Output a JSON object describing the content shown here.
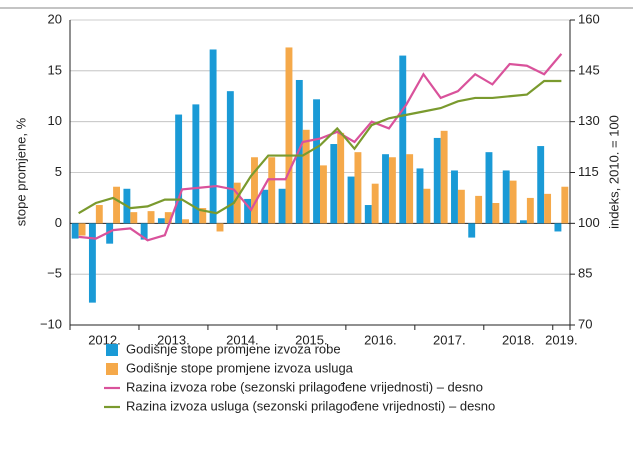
{
  "chart_data": {
    "type": "bar-line",
    "y_label": "stope promjene, %",
    "y2_label": "indeks, 2010. = 100",
    "categories": [
      null,
      null,
      "2012.",
      null,
      null,
      null,
      "2013.",
      null,
      null,
      null,
      "2014.",
      null,
      null,
      null,
      "2015.",
      null,
      null,
      null,
      "2016.",
      null,
      null,
      null,
      "2017.",
      null,
      null,
      null,
      "2018.",
      null,
      "2019."
    ],
    "ylim": [
      -10,
      20
    ],
    "yticks": [
      {
        "value": -10,
        "label": "−10"
      },
      {
        "value": -5,
        "label": "−5"
      },
      0,
      5,
      10,
      15,
      20
    ],
    "y2lim": [
      70,
      160
    ],
    "y2ticks": [
      70,
      85,
      100,
      115,
      130,
      145,
      160
    ],
    "series": [
      {
        "name": "Godišnje stope promjene izvoza robe",
        "color": "#1a9ad6",
        "kind": "bar",
        "values": [
          -1.5,
          -7.8,
          -2.0,
          3.4,
          -1.6,
          0.5,
          10.7,
          11.7,
          17.1,
          13.0,
          2.4,
          3.3,
          3.4,
          14.1,
          12.2,
          7.8,
          4.6,
          1.8,
          6.8,
          16.5,
          5.4,
          8.4,
          5.2,
          -1.4,
          7.0,
          5.2,
          0.3,
          7.6,
          -0.8
        ]
      },
      {
        "name": "Godišnje stope promjene izvoza usluga",
        "color": "#f5a94a",
        "kind": "bar",
        "values": [
          -1.2,
          1.8,
          3.6,
          1.1,
          1.2,
          1.1,
          0.4,
          1.5,
          -0.8,
          4.0,
          6.5,
          6.5,
          17.3,
          9.2,
          5.7,
          8.9,
          7.0,
          3.9,
          6.5,
          6.8,
          3.4,
          9.1,
          3.3,
          2.7,
          2.0,
          4.2,
          2.5,
          2.9,
          3.6
        ]
      },
      {
        "name": "Razina izvoza robe (sezonski prilagođene vrijednosti) – desno",
        "color": "#d9529b",
        "kind": "line",
        "axis": "y2",
        "values": [
          96,
          95.5,
          98,
          98.5,
          95,
          96.5,
          110,
          110.5,
          111,
          110,
          104,
          113,
          113,
          124,
          125,
          127,
          124,
          130,
          128,
          135,
          144,
          137,
          139,
          144,
          141,
          147,
          146.5,
          144,
          150
        ]
      },
      {
        "name": "Razina izvoza usluga (sezonski prilagođene vrijednosti) – desno",
        "color": "#7a9a2e",
        "kind": "line",
        "axis": "y2",
        "values": [
          103,
          106,
          107.5,
          104.5,
          105,
          107,
          107,
          104,
          103,
          106,
          114,
          120,
          120,
          120,
          123,
          128,
          122,
          129,
          131,
          132,
          133,
          134,
          136,
          137,
          137,
          137.5,
          138,
          142,
          142
        ]
      }
    ]
  }
}
